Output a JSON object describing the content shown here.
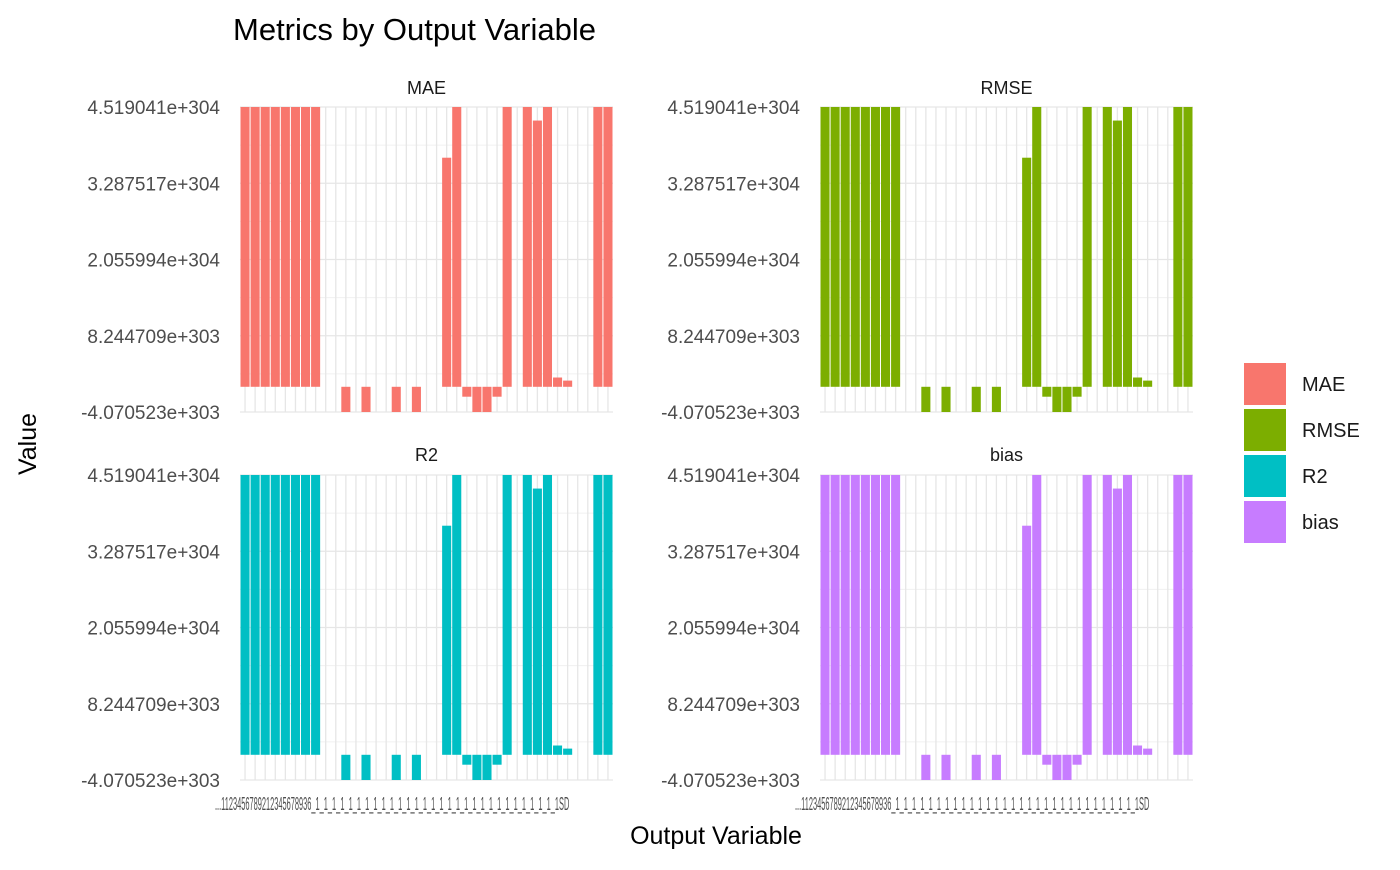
{
  "chart_data": {
    "type": "bar",
    "title": "Metrics by Output Variable",
    "xlabel": "Output Variable",
    "ylabel": "Value",
    "y_tick_labels": [
      "4.519041e+304",
      "3.287517e+304",
      "2.055994e+304",
      "8.244709e+303",
      "-4.070523e+303"
    ],
    "ylim": [
      -4.070523e+303,
      4.519041e+304
    ],
    "grid": true,
    "legend_position": "right",
    "x_axis_tick_text": "...1123456789212345678936_1_1_1_1_1_1_1_1_1_1_1_1_1_1_1_1_1_1_1_1_1_1_1_1_1_1_1_1_1_1SD",
    "legend": [
      {
        "label": "MAE",
        "color": "#F8766D"
      },
      {
        "label": "RMSE",
        "color": "#7CAE00"
      },
      {
        "label": "R2",
        "color": "#00BFC4"
      },
      {
        "label": "bias",
        "color": "#C77CFF"
      }
    ],
    "facets": [
      {
        "strip": "MAE",
        "color": "#F8766D"
      },
      {
        "strip": "RMSE",
        "color": "#7CAE00"
      },
      {
        "strip": "R2",
        "color": "#00BFC4"
      },
      {
        "strip": "bias",
        "color": "#C77CFF"
      }
    ],
    "values": [
      4.519041e+304,
      4.519041e+304,
      4.519041e+304,
      4.519041e+304,
      4.519041e+304,
      4.519041e+304,
      4.519041e+304,
      4.519041e+304,
      null,
      null,
      -4.070523e+303,
      null,
      -4.070523e+303,
      null,
      null,
      -4.070523e+303,
      null,
      -4.070523e+303,
      null,
      null,
      3.7e+304,
      4.519041e+304,
      -1.6e+303,
      -4.070523e+303,
      -4.070523e+303,
      -1.6e+303,
      4.519041e+304,
      null,
      4.519041e+304,
      4.3e+304,
      4.519041e+304,
      1.5e+303,
      1e+303,
      null,
      null,
      4.519041e+304,
      4.519041e+304
    ]
  }
}
